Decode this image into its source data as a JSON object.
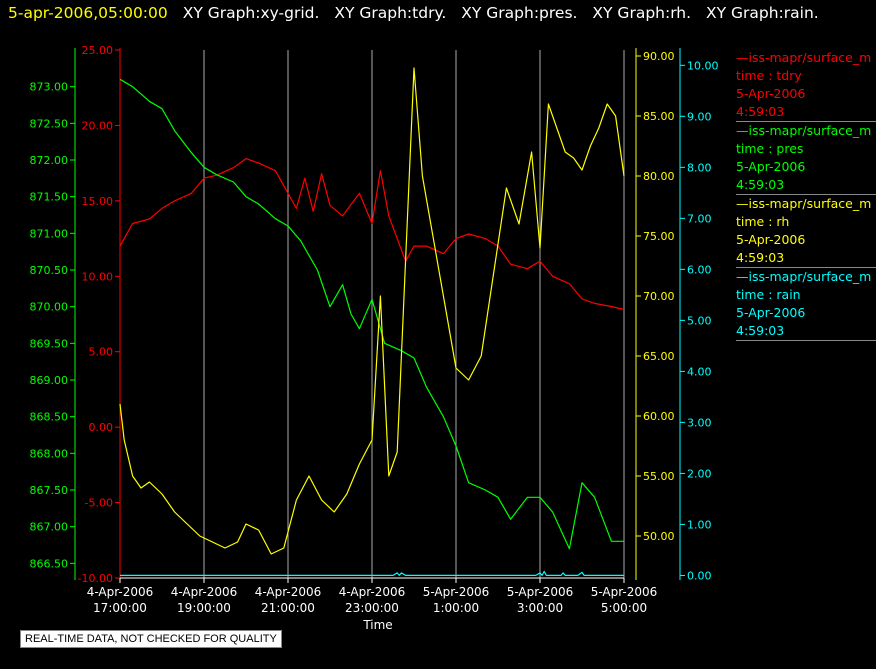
{
  "header": {
    "datetime": "5-apr-2006,05:00:00",
    "graphs": [
      "XY Graph:xy-grid.",
      "XY Graph:tdry.",
      "XY Graph:pres.",
      "XY Graph:rh.",
      "XY Graph:rain."
    ]
  },
  "colors": {
    "background": "#000000",
    "tdry": "#ff0000",
    "pres": "#00ff00",
    "rh": "#ffff00",
    "rain": "#00ffff",
    "grid": "#aaaaaa"
  },
  "legend": [
    {
      "title": "—iss-mapr/surface_m",
      "field": "time : tdry",
      "date": "5-Apr-2006",
      "time": "4:59:03",
      "color": "#ff0000"
    },
    {
      "title": "—iss-mapr/surface_m",
      "field": "time : pres",
      "date": "5-Apr-2006",
      "time": "4:59:03",
      "color": "#00ff00"
    },
    {
      "title": "—iss-mapr/surface_m",
      "field": "time : rh",
      "date": "5-Apr-2006",
      "time": "4:59:03",
      "color": "#ffff00"
    },
    {
      "title": "—iss-mapr/surface_m",
      "field": "time : rain",
      "date": "5-Apr-2006",
      "time": "4:59:03",
      "color": "#00ffff"
    }
  ],
  "footer_note": "REAL-TIME DATA, NOT CHECKED FOR QUALITY",
  "chart_data": {
    "type": "line",
    "xlabel": "Time",
    "xlim": [
      17,
      29
    ],
    "x_ticks": [
      {
        "x": 17,
        "label": [
          "4-Apr-2006",
          "17:00:00"
        ]
      },
      {
        "x": 19,
        "label": [
          "4-Apr-2006",
          "19:00:00"
        ]
      },
      {
        "x": 21,
        "label": [
          "4-Apr-2006",
          "21:00:00"
        ]
      },
      {
        "x": 23,
        "label": [
          "4-Apr-2006",
          "23:00:00"
        ]
      },
      {
        "x": 25,
        "label": [
          "5-Apr-2006",
          "1:00:00"
        ]
      },
      {
        "x": 27,
        "label": [
          "5-Apr-2006",
          "3:00:00"
        ]
      },
      {
        "x": 29,
        "label": [
          "5-Apr-2006",
          "5:00:00"
        ]
      }
    ],
    "grid": "vertical",
    "axes": {
      "pres": {
        "side": "left-outer",
        "range": [
          866.3,
          873.5
        ],
        "ticks": [
          "866.50",
          "867.00",
          "867.50",
          "868.00",
          "868.50",
          "869.00",
          "869.50",
          "870.00",
          "870.50",
          "871.00",
          "871.50",
          "872.00",
          "872.50",
          "873.00"
        ]
      },
      "tdry": {
        "side": "left-inner",
        "range": [
          -10,
          25
        ],
        "ticks": [
          "-10.00",
          "-5.00",
          "0.00",
          "5.00",
          "10.00",
          "15.00",
          "20.00",
          "25.00"
        ]
      },
      "rh": {
        "side": "right-inner",
        "range": [
          46.5,
          90.5
        ],
        "ticks": [
          "50.00",
          "55.00",
          "60.00",
          "65.00",
          "70.00",
          "75.00",
          "80.00",
          "85.00",
          "90.00"
        ]
      },
      "rain": {
        "side": "right-outer",
        "range": [
          -0.05,
          10.3
        ],
        "ticks": [
          "0.00",
          "1.00",
          "2.00",
          "3.00",
          "4.00",
          "5.00",
          "6.00",
          "7.00",
          "8.00",
          "9.00",
          "10.00"
        ]
      }
    },
    "series": [
      {
        "name": "time : tdry",
        "axis": "tdry",
        "x": [
          17,
          17.3,
          17.7,
          18,
          18.3,
          18.7,
          19,
          19.3,
          19.7,
          20,
          20.3,
          20.7,
          21,
          21.2,
          21.4,
          21.6,
          21.8,
          22,
          22.3,
          22.7,
          23,
          23.2,
          23.4,
          23.6,
          23.8,
          24,
          24.3,
          24.7,
          25,
          25.3,
          25.7,
          26,
          26.3,
          26.7,
          27,
          27.3,
          27.7,
          28,
          28.3,
          28.7,
          29
        ],
        "values": [
          12,
          13.5,
          13.8,
          14.5,
          15,
          15.5,
          16.5,
          16.7,
          17.2,
          17.8,
          17.5,
          17,
          15.5,
          14.5,
          16.5,
          14.3,
          16.8,
          14.7,
          14,
          15.5,
          13.5,
          17,
          14,
          12.5,
          11,
          12,
          12,
          11.5,
          12.5,
          12.8,
          12.5,
          12,
          10.8,
          10.5,
          11,
          10,
          9.5,
          8.5,
          8.2,
          8,
          7.8
        ]
      },
      {
        "name": "time : pres",
        "axis": "pres",
        "x": [
          17,
          17.3,
          17.7,
          18,
          18.3,
          18.7,
          19,
          19.3,
          19.7,
          20,
          20.3,
          20.7,
          21,
          21.3,
          21.7,
          22,
          22.3,
          22.5,
          22.7,
          23,
          23.3,
          23.7,
          24,
          24.3,
          24.7,
          25,
          25.3,
          25.7,
          26,
          26.3,
          26.7,
          27,
          27.3,
          27.7,
          28,
          28.3,
          28.7,
          29
        ],
        "values": [
          873.1,
          873.0,
          872.8,
          872.7,
          872.4,
          872.1,
          871.9,
          871.8,
          871.7,
          871.5,
          871.4,
          871.2,
          871.1,
          870.9,
          870.5,
          870.0,
          870.3,
          869.9,
          869.7,
          870.1,
          869.5,
          869.4,
          869.3,
          868.9,
          868.5,
          868.1,
          867.6,
          867.5,
          867.4,
          867.1,
          867.4,
          867.4,
          867.2,
          866.7,
          867.6,
          867.4,
          866.8,
          866.8
        ]
      },
      {
        "name": "time : rh",
        "axis": "rh",
        "x": [
          17,
          17.1,
          17.3,
          17.5,
          17.7,
          18,
          18.3,
          18.6,
          18.9,
          19.2,
          19.5,
          19.8,
          20,
          20.3,
          20.6,
          20.9,
          21.2,
          21.5,
          21.8,
          22.1,
          22.4,
          22.7,
          23,
          23.2,
          23.4,
          23.6,
          23.8,
          24,
          24.2,
          24.4,
          24.6,
          24.8,
          25,
          25.3,
          25.6,
          25.9,
          26.2,
          26.5,
          26.8,
          27,
          27.2,
          27.4,
          27.6,
          27.8,
          28,
          28.2,
          28.4,
          28.6,
          28.8,
          29
        ],
        "values": [
          61,
          58,
          55,
          54,
          54.5,
          53.5,
          52,
          51,
          50,
          49.5,
          49,
          49.5,
          51,
          50.5,
          48.5,
          49,
          53,
          55,
          53,
          52,
          53.5,
          56,
          58,
          70,
          55,
          57,
          73,
          89,
          80,
          76,
          72,
          68,
          64,
          63,
          65,
          72,
          79,
          76,
          82,
          74,
          86,
          84,
          82,
          81.5,
          80.5,
          82.5,
          84,
          86,
          85,
          80
        ]
      },
      {
        "name": "time : rain",
        "axis": "rain",
        "x": [
          17,
          23.5,
          23.6,
          23.65,
          23.7,
          23.8,
          26.9,
          27.0,
          27.05,
          27.1,
          27.15,
          27.5,
          27.55,
          27.6,
          27.9,
          28.0,
          28.05,
          28.4,
          29
        ],
        "values": [
          0,
          0,
          0.05,
          0,
          0.05,
          0,
          0,
          0.05,
          0,
          0.08,
          0,
          0,
          0.05,
          0,
          0,
          0.06,
          0,
          0,
          0
        ]
      }
    ]
  }
}
